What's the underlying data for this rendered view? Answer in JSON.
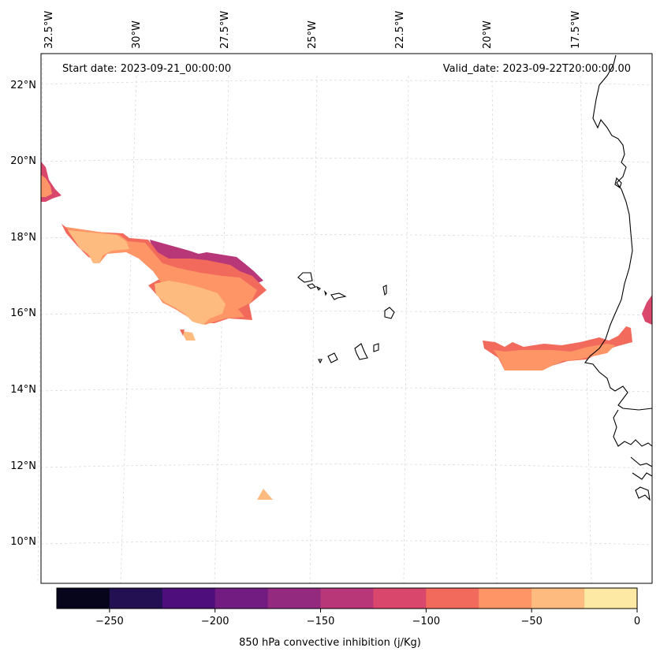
{
  "header": {
    "start_date": "Start date: 2023-09-21_00:00:00",
    "valid_date": "Valid_date: 2023-09-22T20:00:00.00"
  },
  "longitude_labels": [
    "32.5°W",
    "30°W",
    "27.5°W",
    "25°W",
    "22.5°W",
    "20°W",
    "17.5°W"
  ],
  "latitude_labels": [
    "22°N",
    "20°N",
    "18°N",
    "16°N",
    "14°N",
    "12°N",
    "10°N"
  ],
  "colorbar": {
    "label": "850 hPa convective inhibition (j/Kg)",
    "ticks": [
      "−250",
      "−200",
      "−150",
      "−100",
      "−50",
      "0"
    ],
    "tick_values": [
      -250,
      -200,
      -150,
      -100,
      -50,
      0
    ],
    "range": [
      -275,
      0
    ],
    "colors": [
      "#07051b",
      "#221052",
      "#4e0f7d",
      "#721b80",
      "#942a7f",
      "#b73779",
      "#da476c",
      "#f26a5c",
      "#fd9567",
      "#febb80",
      "#fee9a4"
    ]
  },
  "colors": {
    "coastline": "#000000",
    "gridline": "#cccccc"
  }
}
